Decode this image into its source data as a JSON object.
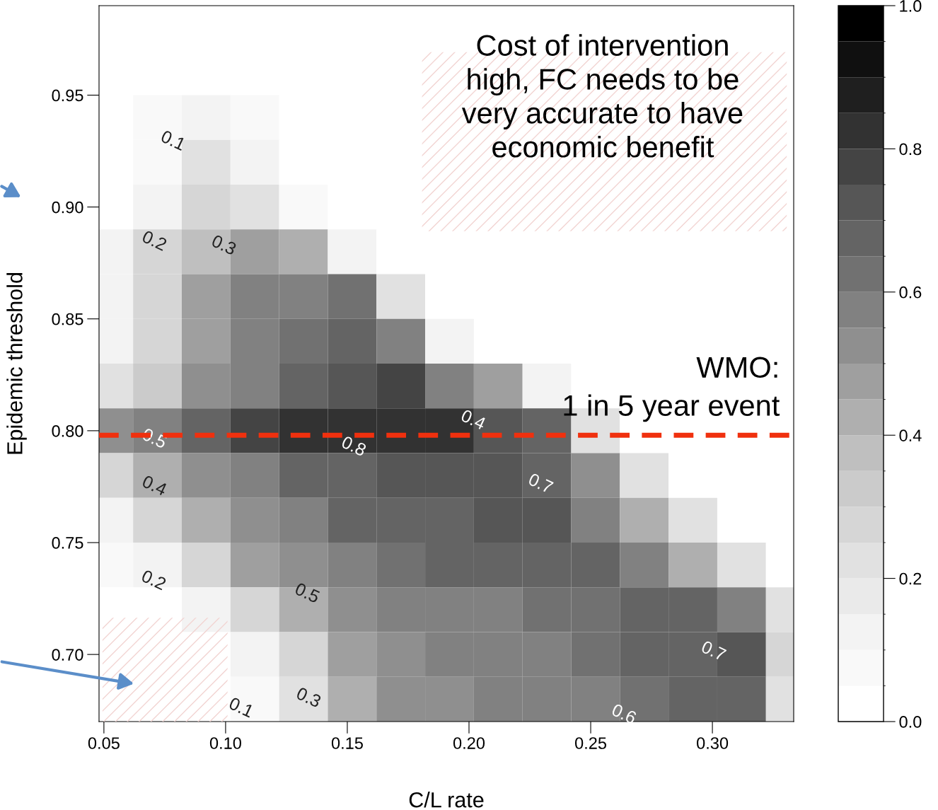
{
  "chart_data": {
    "type": "heatmap",
    "xlabel": "C/L rate",
    "ylabel": "Epidemic threshold",
    "x": [
      0.052,
      0.072,
      0.092,
      0.112,
      0.132,
      0.152,
      0.172,
      0.192,
      0.212,
      0.232,
      0.252,
      0.272,
      0.292,
      0.312,
      0.332
    ],
    "y": [
      0.94,
      0.92,
      0.9,
      0.88,
      0.86,
      0.84,
      0.82,
      0.8,
      0.78,
      0.76,
      0.74,
      0.72,
      0.7,
      0.68
    ],
    "cells": [
      [
        0,
        0.05,
        0.12,
        0.05,
        0,
        0,
        0,
        0,
        0,
        0,
        0,
        0,
        0,
        0,
        0
      ],
      [
        0,
        0.08,
        0.2,
        0.12,
        0.03,
        0,
        0,
        0,
        0,
        0,
        0,
        0,
        0,
        0,
        0
      ],
      [
        0,
        0.15,
        0.25,
        0.2,
        0.08,
        0,
        0,
        0,
        0,
        0,
        0,
        0,
        0,
        0,
        0
      ],
      [
        0.1,
        0.25,
        0.38,
        0.45,
        0.4,
        0.1,
        0,
        0,
        0,
        0,
        0,
        0,
        0,
        0,
        0
      ],
      [
        0.1,
        0.3,
        0.45,
        0.55,
        0.6,
        0.62,
        0.2,
        0,
        0,
        0,
        0,
        0,
        0,
        0,
        0
      ],
      [
        0.15,
        0.3,
        0.45,
        0.55,
        0.62,
        0.68,
        0.6,
        0.1,
        0,
        0,
        0,
        0,
        0,
        0,
        0
      ],
      [
        0.2,
        0.35,
        0.5,
        0.6,
        0.68,
        0.72,
        0.75,
        0.6,
        0.45,
        0.15,
        0,
        0,
        0,
        0,
        0
      ],
      [
        0.5,
        0.6,
        0.7,
        0.75,
        0.8,
        0.82,
        0.85,
        0.8,
        0.72,
        0.65,
        0.2,
        0,
        0,
        0,
        0
      ],
      [
        0.25,
        0.4,
        0.5,
        0.6,
        0.65,
        0.7,
        0.72,
        0.73,
        0.72,
        0.7,
        0.5,
        0.2,
        0,
        0,
        0
      ],
      [
        0.1,
        0.25,
        0.4,
        0.5,
        0.58,
        0.65,
        0.68,
        0.7,
        0.72,
        0.72,
        0.6,
        0.4,
        0.2,
        0,
        0
      ],
      [
        0.05,
        0.15,
        0.3,
        0.45,
        0.52,
        0.58,
        0.62,
        0.65,
        0.66,
        0.68,
        0.65,
        0.55,
        0.4,
        0.2,
        0
      ],
      [
        0,
        0.02,
        0.1,
        0.3,
        0.42,
        0.5,
        0.55,
        0.58,
        0.6,
        0.62,
        0.64,
        0.7,
        0.7,
        0.55,
        0.2
      ],
      [
        0,
        0,
        0,
        0.1,
        0.3,
        0.45,
        0.52,
        0.55,
        0.58,
        0.6,
        0.62,
        0.65,
        0.7,
        0.72,
        0.3
      ],
      [
        0,
        0,
        0,
        0.05,
        0.2,
        0.4,
        0.5,
        0.52,
        0.55,
        0.58,
        0.6,
        0.62,
        0.65,
        0.7,
        0.2
      ]
    ],
    "xlim": [
      0.048,
      0.3334
    ],
    "ylim": [
      0.67,
      0.99
    ],
    "xticks": [
      0.05,
      {
        "value": 0.1,
        "label": "0.10"
      },
      0.15,
      {
        "value": 0.2,
        "label": "0.20"
      },
      0.25,
      {
        "value": 0.3,
        "label": "0.30"
      }
    ],
    "yticks": [
      {
        "value": 0.7,
        "label": "0.70"
      },
      0.75,
      {
        "value": 0.8,
        "label": "0.80"
      },
      0.85,
      {
        "value": 0.9,
        "label": "0.90"
      },
      0.95
    ],
    "clim": [
      0,
      1
    ],
    "cticks": [
      {
        "value": 0,
        "label": "0.0"
      },
      {
        "value": 0.2,
        "label": "0.2"
      },
      {
        "value": 0.4,
        "label": "0.4"
      },
      {
        "value": 0.6,
        "label": "0.6"
      },
      {
        "value": 0.8,
        "label": "0.8"
      },
      {
        "value": 1,
        "label": "1.0"
      }
    ],
    "ref_lines": [
      {
        "axis": "y",
        "value": 0.798,
        "label": "WMO:\n1 in 5 year event",
        "color": "#f0300e",
        "line_style": "dashed"
      }
    ],
    "annotations": [
      "Cost of intervention\nhigh, FC needs to be\nvery accurate to have\neconomic benefit",
      "0.1",
      "0.2",
      "0.3",
      "0.4",
      "0.5",
      "0.8",
      "0.7",
      "0.4",
      "0.2",
      "0.5",
      "0.3",
      "0.1",
      "0.6",
      "0.7"
    ],
    "grid": false
  }
}
